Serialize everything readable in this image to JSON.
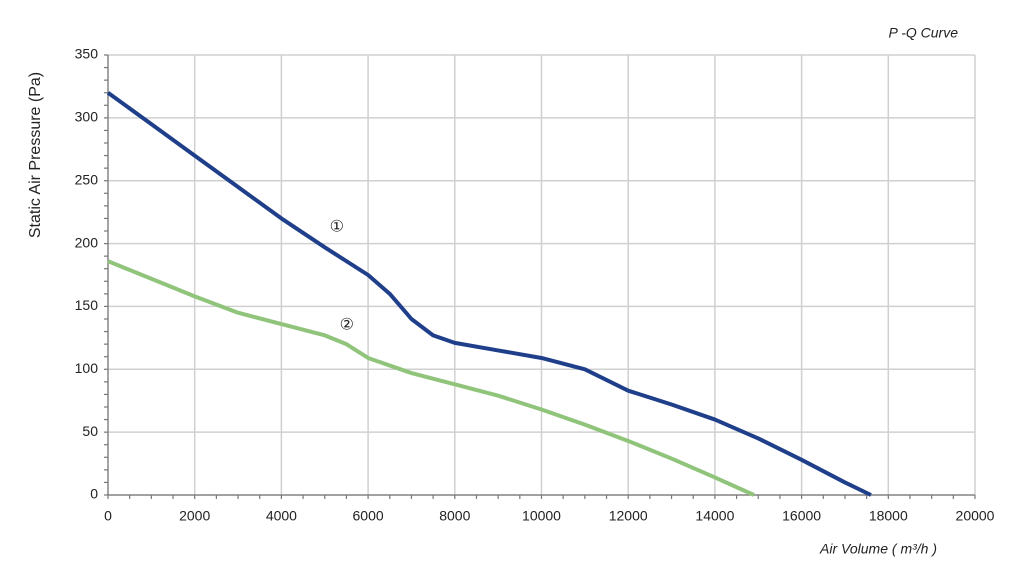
{
  "chart_data": {
    "type": "line",
    "title": "P -Q Curve",
    "x_label": "Air Volume ( m³/h )",
    "y_label": "Static Air Pressure  (Pa)",
    "xlim": [
      0,
      20000
    ],
    "xticks": [
      0,
      2000,
      4000,
      6000,
      8000,
      10000,
      12000,
      14000,
      16000,
      18000,
      20000
    ],
    "ylim": [
      0,
      350
    ],
    "yticks": [
      0,
      50,
      100,
      150,
      200,
      250,
      300,
      350
    ],
    "grid": true,
    "series": [
      {
        "name": "①",
        "color": "#1f3f8a",
        "x": [
          0,
          1000,
          2000,
          3000,
          4000,
          5000,
          6000,
          6500,
          7000,
          7500,
          8000,
          9000,
          10000,
          11000,
          12000,
          13000,
          14000,
          15000,
          16000,
          17000,
          17600
        ],
        "values": [
          320,
          295,
          270,
          245,
          220,
          197,
          175,
          160,
          140,
          127,
          121,
          115,
          109,
          100,
          83,
          72,
          60,
          45,
          28,
          10,
          0
        ]
      },
      {
        "name": "②",
        "color": "#8fc47a",
        "x": [
          0,
          1000,
          2000,
          3000,
          4000,
          5000,
          5500,
          6000,
          7000,
          8000,
          9000,
          10000,
          11000,
          12000,
          13000,
          14000,
          14900
        ],
        "values": [
          186,
          172,
          158,
          145,
          136,
          127,
          120,
          109,
          97,
          88,
          79,
          68,
          56,
          43,
          29,
          14,
          0
        ]
      }
    ]
  }
}
